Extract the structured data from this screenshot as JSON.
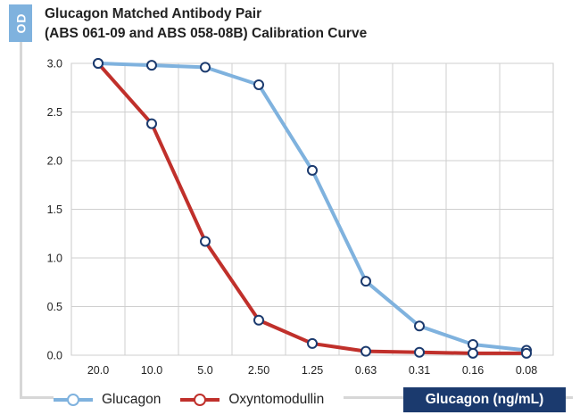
{
  "chart_data": {
    "type": "line",
    "title_line1": "Glucagon Matched Antibody Pair",
    "title_line2": "(ABS 061-09 and ABS 058-08B) Calibration Curve",
    "ylabel": "OD",
    "xlabel": "Glucagon (ng/mL)",
    "categories": [
      "20.0",
      "10.0",
      "5.0",
      "2.50",
      "1.25",
      "0.63",
      "0.31",
      "0.16",
      "0.08"
    ],
    "yticks": [
      "0.0",
      "0.5",
      "1.0",
      "1.5",
      "2.0",
      "2.5",
      "3.0"
    ],
    "ylim": [
      0,
      3.0
    ],
    "grid": true,
    "legend_position": "bottom",
    "series": [
      {
        "name": "Glucagon",
        "color": "#7fb2de",
        "values": [
          3.0,
          2.98,
          2.96,
          2.78,
          1.9,
          0.76,
          0.3,
          0.11,
          0.05
        ]
      },
      {
        "name": "Oxyntomodullin",
        "color": "#c0302b",
        "values": [
          3.0,
          2.38,
          1.17,
          0.36,
          0.12,
          0.04,
          0.03,
          0.02,
          0.02
        ]
      }
    ]
  }
}
